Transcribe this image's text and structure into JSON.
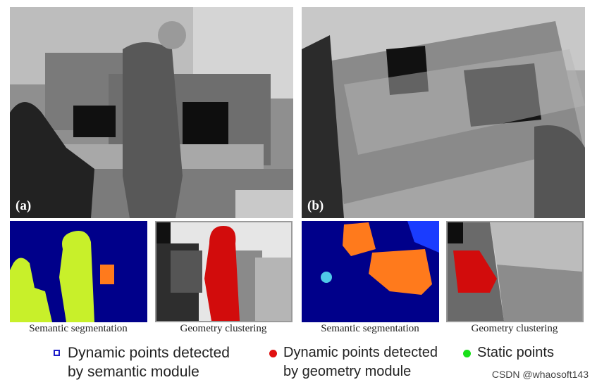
{
  "panels": [
    {
      "tag": "(a)"
    },
    {
      "tag": "(b)"
    }
  ],
  "captions": [
    "Semantic segmentation",
    "Geometry clustering",
    "Semantic segmentation",
    "Geometry clustering"
  ],
  "legend": [
    {
      "marker": "blue-square",
      "text": "Dynamic points detected\nby semantic module",
      "color": "#1c1cc8"
    },
    {
      "marker": "red-dot",
      "text": "Dynamic points detected\nby geometry module",
      "color": "#e01010"
    },
    {
      "marker": "green-dot",
      "text": "Static points",
      "color": "#19e019"
    }
  ],
  "watermark": "CSDN @whaosoft143"
}
